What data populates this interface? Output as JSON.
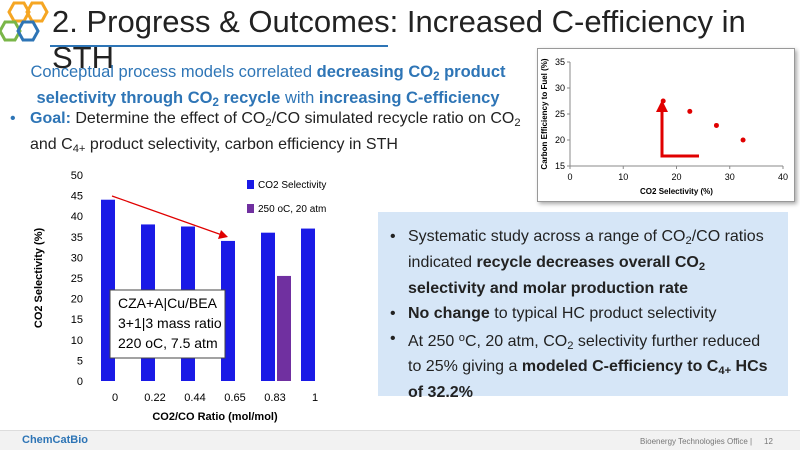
{
  "header": {
    "title": "2. Progress & Outcomes: Increased C-efficiency in STH"
  },
  "intro": [
    "Conceptual process models correlated ",
    "decreasing CO",
    "2",
    " product selectivity through CO",
    "2",
    " recycle",
    " with ",
    "increasing C-efficiency"
  ],
  "goal": [
    "Goal:",
    " Determine the effect of CO",
    "2",
    "/CO simulated recycle ratio on CO",
    "2",
    " and C",
    "4+",
    " product selectivity, carbon efficiency in STH"
  ],
  "bullets": [
    [
      "Systematic study across a range of CO",
      "2",
      "/CO ratios indicated ",
      "recycle decreases overall CO",
      "2",
      " selectivity and molar production rate"
    ],
    [
      "No change",
      " to typical HC product selectivity"
    ],
    [
      "At 250 ",
      "o",
      "C, 20 atm, CO",
      "2",
      " selectivity further reduced to 25% giving a ",
      "modeled C-efficiency to C",
      "4+",
      " HCs of 32.2%"
    ]
  ],
  "chart_data": [
    {
      "type": "bar",
      "xlabel": "CO2/CO Ratio (mol/mol)",
      "ylabel": "CO2 Selectivity (%)",
      "categories": [
        "0",
        "0.22",
        "0.44",
        "0.65",
        "0.83",
        "1"
      ],
      "series": [
        {
          "name": "CO2 Selectivity",
          "color": "#1a1ae6",
          "values": [
            44,
            38,
            37.5,
            34,
            36,
            37
          ]
        },
        {
          "name": "250 oC, 20 atm",
          "color": "#7030a0",
          "values": [
            null,
            null,
            null,
            null,
            25.5,
            null
          ]
        }
      ],
      "ylim": [
        0,
        50
      ],
      "yticks": [
        0,
        5,
        10,
        15,
        20,
        25,
        30,
        35,
        40,
        45,
        50
      ],
      "annotation": [
        "CZA+A|Cu/BEA",
        "3+1|3 mass ratio",
        "220 oC, 7.5 atm"
      ]
    },
    {
      "type": "scatter",
      "xlabel": "CO2 Selectivity (%)",
      "ylabel": "Carbon Efficiency to Fuel (%)",
      "color": "#e00000",
      "x": [
        17.5,
        22.5,
        27.5,
        32.5
      ],
      "values": [
        27.5,
        25.5,
        22.8,
        20
      ],
      "xlim": [
        0,
        40
      ],
      "xticks": [
        0,
        10,
        20,
        30,
        40
      ],
      "ylim": [
        15,
        35
      ],
      "yticks": [
        15,
        20,
        25,
        30,
        35
      ]
    }
  ],
  "footer": {
    "brand": "ChemCatBio",
    "office": "Bioenergy Technologies Office |",
    "page": "12"
  }
}
